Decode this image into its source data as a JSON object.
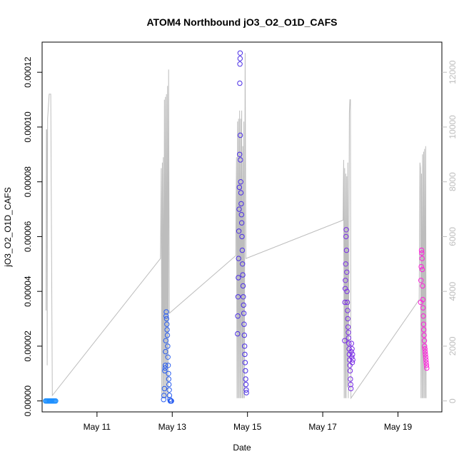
{
  "chart_data": {
    "type": "scatter",
    "title": "ATOM4 Northbound jO3_O2_O1D_CAFS",
    "xlabel": "Date",
    "ylabel": "jO3_O2_O1D_CAFS",
    "x_ticks": [
      "May 11",
      "May 13",
      "May 15",
      "May 17",
      "May 19"
    ],
    "x_range": [
      "2018-05-09 13:00",
      "2018-05-20 04:00"
    ],
    "ylim": [
      -4e-06,
      0.000131
    ],
    "y_ticks": [
      "0.00000",
      "0.00002",
      "0.00004",
      "0.00006",
      "0.00008",
      "0.00010",
      "0.00012"
    ],
    "y2lim": [
      -400,
      13100
    ],
    "y2_ticks": [
      "0",
      "2000",
      "4000",
      "6000",
      "8000",
      "10000",
      "12000"
    ],
    "grid": false,
    "legend": "none",
    "colors": {
      "altitude_line": "#bdbdbd",
      "flight1": "#1e90ff",
      "flight2": "#2a5ef0",
      "flight3": "#4b2ee6",
      "flight4": "#7a2ee6",
      "flight5": "#ff1edc"
    },
    "series": [
      {
        "kind": "points",
        "color_key": "flight1",
        "points": [
          [
            "2018-05-09 15:10",
            0.0
          ],
          [
            "2018-05-09 15:40",
            0.0
          ],
          [
            "2018-05-09 16:10",
            0.0
          ],
          [
            "2018-05-09 16:40",
            0.0
          ],
          [
            "2018-05-09 17:10",
            0.0
          ],
          [
            "2018-05-09 17:40",
            0.0
          ],
          [
            "2018-05-09 18:10",
            0.0
          ],
          [
            "2018-05-09 18:40",
            0.0
          ],
          [
            "2018-05-09 19:10",
            0.0
          ],
          [
            "2018-05-09 19:40",
            0.0
          ],
          [
            "2018-05-09 20:10",
            0.0
          ],
          [
            "2018-05-09 20:40",
            0.0
          ],
          [
            "2018-05-09 21:10",
            0.0
          ],
          [
            "2018-05-09 21:40",
            0.0
          ]
        ]
      },
      {
        "kind": "points",
        "color_key": "flight2",
        "points": [
          [
            "2018-05-12 18:30",
            5e-07
          ],
          [
            "2018-05-12 18:45",
            2e-06
          ],
          [
            "2018-05-12 19:00",
            4.5e-06
          ],
          [
            "2018-05-12 19:15",
            1.1e-05
          ],
          [
            "2018-05-12 19:25",
            1.2e-05
          ],
          [
            "2018-05-12 19:35",
            1.3e-05
          ],
          [
            "2018-05-12 19:45",
            1.8e-05
          ],
          [
            "2018-05-12 19:55",
            2.2e-05
          ],
          [
            "2018-05-12 20:05",
            3.1e-05
          ],
          [
            "2018-05-12 20:15",
            3.25e-05
          ],
          [
            "2018-05-12 20:25",
            3e-05
          ],
          [
            "2018-05-12 20:35",
            2.8e-05
          ],
          [
            "2018-05-12 20:45",
            2.6e-05
          ],
          [
            "2018-05-12 20:55",
            2.4e-05
          ],
          [
            "2018-05-12 21:05",
            2e-05
          ],
          [
            "2018-05-12 21:15",
            1.6e-05
          ],
          [
            "2018-05-12 21:25",
            1.3e-05
          ],
          [
            "2018-05-12 21:35",
            1e-05
          ],
          [
            "2018-05-12 21:45",
            8e-06
          ],
          [
            "2018-05-12 21:55",
            6e-06
          ],
          [
            "2018-05-12 22:05",
            4e-06
          ],
          [
            "2018-05-12 22:15",
            2e-06
          ],
          [
            "2018-05-12 22:30",
            5e-07
          ],
          [
            "2018-05-12 22:45",
            0.0
          ],
          [
            "2018-05-12 23:00",
            0.0
          ],
          [
            "2018-05-12 23:15",
            0.0
          ],
          [
            "2018-05-12 23:30",
            0.0
          ]
        ]
      },
      {
        "kind": "points",
        "color_key": "flight3",
        "points": [
          [
            "2018-05-14 17:40",
            2.45e-05
          ],
          [
            "2018-05-14 17:50",
            3.1e-05
          ],
          [
            "2018-05-14 18:00",
            3.8e-05
          ],
          [
            "2018-05-14 18:10",
            4.5e-05
          ],
          [
            "2018-05-14 18:20",
            5.2e-05
          ],
          [
            "2018-05-14 18:30",
            6.2e-05
          ],
          [
            "2018-05-14 18:40",
            7e-05
          ],
          [
            "2018-05-14 18:50",
            7.8e-05
          ],
          [
            "2018-05-14 19:00",
            9e-05
          ],
          [
            "2018-05-14 19:05",
            0.000116
          ],
          [
            "2018-05-14 19:10",
            0.000123
          ],
          [
            "2018-05-14 19:15",
            0.000125
          ],
          [
            "2018-05-14 19:20",
            0.000127
          ],
          [
            "2018-05-14 19:25",
            9.7e-05
          ],
          [
            "2018-05-14 19:30",
            8.8e-05
          ],
          [
            "2018-05-14 19:40",
            8e-05
          ],
          [
            "2018-05-14 19:50",
            7.6e-05
          ],
          [
            "2018-05-14 20:00",
            7.2e-05
          ],
          [
            "2018-05-14 20:10",
            6.8e-05
          ],
          [
            "2018-05-14 20:20",
            6.5e-05
          ],
          [
            "2018-05-14 20:30",
            6e-05
          ],
          [
            "2018-05-14 20:40",
            5.5e-05
          ],
          [
            "2018-05-14 20:50",
            5e-05
          ],
          [
            "2018-05-14 21:00",
            4.6e-05
          ],
          [
            "2018-05-14 21:10",
            4.2e-05
          ],
          [
            "2018-05-14 21:20",
            3.8e-05
          ],
          [
            "2018-05-14 21:30",
            3.5e-05
          ],
          [
            "2018-05-14 21:40",
            3.2e-05
          ],
          [
            "2018-05-14 21:50",
            2.8e-05
          ],
          [
            "2018-05-14 22:00",
            2.4e-05
          ],
          [
            "2018-05-14 22:10",
            2e-05
          ],
          [
            "2018-05-14 22:20",
            1.7e-05
          ],
          [
            "2018-05-14 22:30",
            1.4e-05
          ],
          [
            "2018-05-14 22:40",
            1.1e-05
          ],
          [
            "2018-05-14 22:50",
            8e-06
          ],
          [
            "2018-05-14 23:00",
            6e-06
          ],
          [
            "2018-05-14 23:10",
            4e-06
          ],
          [
            "2018-05-14 23:20",
            3e-06
          ]
        ]
      },
      {
        "kind": "points",
        "color_key": "flight4",
        "points": [
          [
            "2018-05-17 14:00",
            2.2e-05
          ],
          [
            "2018-05-17 14:10",
            3.6e-05
          ],
          [
            "2018-05-17 14:20",
            4.1e-05
          ],
          [
            "2018-05-17 14:30",
            4.4e-05
          ],
          [
            "2018-05-17 14:40",
            5e-05
          ],
          [
            "2018-05-17 14:50",
            6e-05
          ],
          [
            "2018-05-17 15:00",
            6.25e-05
          ],
          [
            "2018-05-17 15:10",
            5.5e-05
          ],
          [
            "2018-05-17 15:20",
            4.7e-05
          ],
          [
            "2018-05-17 15:30",
            4e-05
          ],
          [
            "2018-05-17 15:40",
            3.6e-05
          ],
          [
            "2018-05-17 15:50",
            3.3e-05
          ],
          [
            "2018-05-17 16:00",
            3e-05
          ],
          [
            "2018-05-17 16:10",
            2.7e-05
          ],
          [
            "2018-05-17 16:20",
            2.5e-05
          ],
          [
            "2018-05-17 16:30",
            2.3e-05
          ],
          [
            "2018-05-17 16:40",
            2.1e-05
          ],
          [
            "2018-05-17 16:50",
            1.9e-05
          ],
          [
            "2018-05-17 17:00",
            1.7e-05
          ],
          [
            "2018-05-17 17:10",
            1.5e-05
          ],
          [
            "2018-05-17 17:20",
            1.3e-05
          ],
          [
            "2018-05-17 17:30",
            1.1e-05
          ],
          [
            "2018-05-17 17:40",
            8e-06
          ],
          [
            "2018-05-17 17:50",
            6e-06
          ],
          [
            "2018-05-17 18:00",
            4.5e-06
          ],
          [
            "2018-05-17 18:10",
            1.8e-05
          ],
          [
            "2018-05-17 18:20",
            2.1e-05
          ],
          [
            "2018-05-17 18:30",
            1.6e-05
          ],
          [
            "2018-05-17 18:40",
            1.9e-05
          ],
          [
            "2018-05-17 18:50",
            1.4e-05
          ],
          [
            "2018-05-17 19:00",
            1.7e-05
          ],
          [
            "2018-05-17 19:10",
            1.5e-05
          ]
        ]
      },
      {
        "kind": "points",
        "color_key": "flight5",
        "points": [
          [
            "2018-05-19 14:30",
            3.6e-05
          ],
          [
            "2018-05-19 14:40",
            4.4e-05
          ],
          [
            "2018-05-19 14:50",
            4.9e-05
          ],
          [
            "2018-05-19 15:00",
            5.5e-05
          ],
          [
            "2018-05-19 15:10",
            5.4e-05
          ],
          [
            "2018-05-19 15:20",
            5.2e-05
          ],
          [
            "2018-05-19 15:30",
            4.8e-05
          ],
          [
            "2018-05-19 15:40",
            4.2e-05
          ],
          [
            "2018-05-19 15:50",
            3.7e-05
          ],
          [
            "2018-05-19 16:00",
            3.4e-05
          ],
          [
            "2018-05-19 16:10",
            3.1e-05
          ],
          [
            "2018-05-19 16:20",
            2.8e-05
          ],
          [
            "2018-05-19 16:30",
            2.6e-05
          ],
          [
            "2018-05-19 16:40",
            2.4e-05
          ],
          [
            "2018-05-19 16:50",
            2.2e-05
          ],
          [
            "2018-05-19 17:00",
            2e-05
          ],
          [
            "2018-05-19 17:10",
            1.9e-05
          ],
          [
            "2018-05-19 17:20",
            1.8e-05
          ],
          [
            "2018-05-19 17:30",
            1.7e-05
          ],
          [
            "2018-05-19 17:40",
            1.6e-05
          ],
          [
            "2018-05-19 17:50",
            1.5e-05
          ],
          [
            "2018-05-19 18:00",
            1.4e-05
          ],
          [
            "2018-05-19 18:10",
            1.3e-05
          ],
          [
            "2018-05-19 18:20",
            1.2e-05
          ]
        ]
      },
      {
        "kind": "altitude_line",
        "axis": "right",
        "color_key": "altitude_line",
        "points": [
          [
            "2018-05-09 15:30",
            3300
          ],
          [
            "2018-05-09 15:45",
            9900
          ],
          [
            "2018-05-09 16:00",
            9900
          ],
          [
            "2018-05-09 16:15",
            1300
          ],
          [
            "2018-05-09 16:30",
            10300
          ],
          [
            "2018-05-09 17:30",
            11200
          ],
          [
            "2018-05-09 18:30",
            11200
          ],
          [
            "2018-05-09 19:30",
            200
          ],
          [
            "2018-05-12 16:30",
            5200
          ],
          [
            "2018-05-12 17:00",
            8500
          ],
          [
            "2018-05-12 17:20",
            100
          ],
          [
            "2018-05-12 17:40",
            8700
          ],
          [
            "2018-05-12 18:00",
            100
          ],
          [
            "2018-05-12 18:20",
            8900
          ],
          [
            "2018-05-12 18:40",
            100
          ],
          [
            "2018-05-12 19:00",
            11000
          ],
          [
            "2018-05-12 19:20",
            100
          ],
          [
            "2018-05-12 19:40",
            11100
          ],
          [
            "2018-05-12 20:00",
            100
          ],
          [
            "2018-05-12 20:20",
            11200
          ],
          [
            "2018-05-12 20:40",
            100
          ],
          [
            "2018-05-12 21:00",
            11500
          ],
          [
            "2018-05-12 21:20",
            100
          ],
          [
            "2018-05-12 21:40",
            12100
          ],
          [
            "2018-05-12 22:10",
            3200
          ],
          [
            "2018-05-14 16:30",
            5300
          ],
          [
            "2018-05-14 17:00",
            8900
          ],
          [
            "2018-05-14 17:20",
            100
          ],
          [
            "2018-05-14 17:40",
            10200
          ],
          [
            "2018-05-14 18:00",
            100
          ],
          [
            "2018-05-14 18:20",
            10300
          ],
          [
            "2018-05-14 18:40",
            100
          ],
          [
            "2018-05-14 19:00",
            10600
          ],
          [
            "2018-05-14 19:20",
            100
          ],
          [
            "2018-05-14 19:40",
            10300
          ],
          [
            "2018-05-14 20:00",
            100
          ],
          [
            "2018-05-14 20:20",
            10600
          ],
          [
            "2018-05-14 20:40",
            100
          ],
          [
            "2018-05-14 21:00",
            9300
          ],
          [
            "2018-05-14 21:20",
            100
          ],
          [
            "2018-05-14 21:40",
            10200
          ],
          [
            "2018-05-14 22:00",
            100
          ],
          [
            "2018-05-14 22:30",
            12700
          ],
          [
            "2018-05-14 23:00",
            5200
          ],
          [
            "2018-05-17 13:00",
            6600
          ],
          [
            "2018-05-17 13:20",
            8800
          ],
          [
            "2018-05-17 13:40",
            100
          ],
          [
            "2018-05-17 14:00",
            8500
          ],
          [
            "2018-05-17 14:20",
            100
          ],
          [
            "2018-05-17 14:40",
            8300
          ],
          [
            "2018-05-17 15:00",
            100
          ],
          [
            "2018-05-17 15:20",
            8200
          ],
          [
            "2018-05-17 15:40",
            500
          ],
          [
            "2018-05-17 16:00",
            8700
          ],
          [
            "2018-05-17 16:20",
            100
          ],
          [
            "2018-05-17 16:40",
            5000
          ],
          [
            "2018-05-17 17:00",
            10500
          ],
          [
            "2018-05-17 17:20",
            11000
          ],
          [
            "2018-05-17 17:40",
            11000
          ],
          [
            "2018-05-17 18:00",
            100
          ],
          [
            "2018-05-19 13:30",
            3700
          ],
          [
            "2018-05-19 14:00",
            8700
          ],
          [
            "2018-05-19 14:20",
            8500
          ],
          [
            "2018-05-19 14:40",
            100
          ],
          [
            "2018-05-19 15:00",
            8300
          ],
          [
            "2018-05-19 15:20",
            100
          ],
          [
            "2018-05-19 15:40",
            9000
          ],
          [
            "2018-05-19 16:00",
            100
          ],
          [
            "2018-05-19 16:20",
            9100
          ],
          [
            "2018-05-19 16:40",
            100
          ],
          [
            "2018-05-19 17:00",
            9200
          ],
          [
            "2018-05-19 17:20",
            100
          ],
          [
            "2018-05-19 17:40",
            9300
          ],
          [
            "2018-05-19 18:00",
            100
          ]
        ]
      }
    ]
  }
}
